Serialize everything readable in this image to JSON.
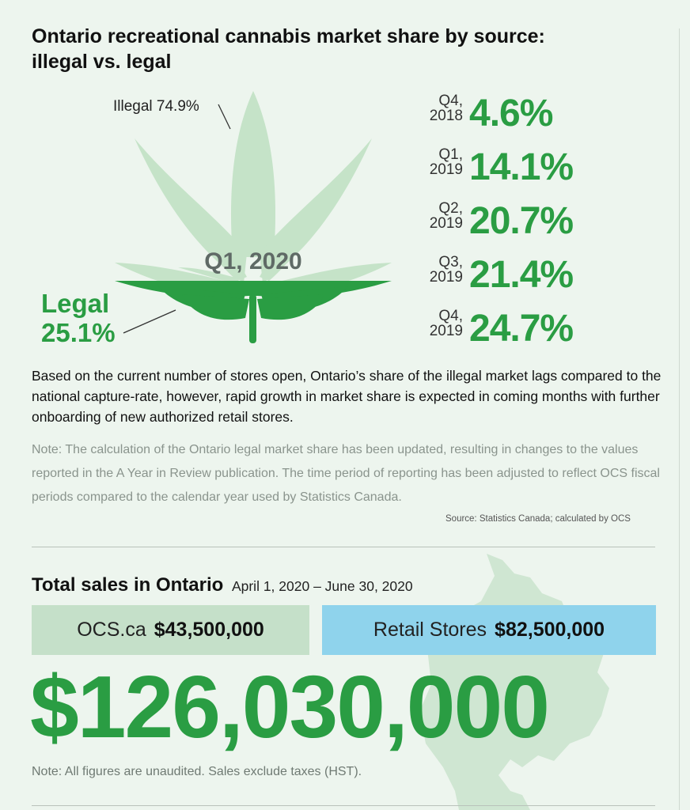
{
  "title": "Ontario recreational cannabis market share by source: illegal vs. legal",
  "leaf": {
    "illegal_label": "Illegal 74.9%",
    "period_label": "Q1, 2020",
    "legal_label_line1": "Legal",
    "legal_label_line2": "25.1%",
    "legal_share_fraction": 0.251,
    "colors": {
      "illegal": "#c5e3c8",
      "legal": "#2a9d43"
    }
  },
  "quarters": [
    {
      "period_line1": "Q4,",
      "period_line2": "2018",
      "value": "4.6%"
    },
    {
      "period_line1": "Q1,",
      "period_line2": "2019",
      "value": "14.1%"
    },
    {
      "period_line1": "Q2,",
      "period_line2": "2019",
      "value": "20.7%"
    },
    {
      "period_line1": "Q3,",
      "period_line2": "2019",
      "value": "21.4%"
    },
    {
      "period_line1": "Q4,",
      "period_line2": "2019",
      "value": "24.7%"
    }
  ],
  "paragraph": "Based on the current number of stores open, Ontario’s share of the illegal market lags compared to the national capture-rate, however, rapid growth in market share is expected in coming months with further onboarding of new authorized retail stores.",
  "note": "Note: The calculation of the Ontario legal market share has been updated, resulting in changes to the values reported in the A Year in Review publication. The time period of reporting has been adjusted to reflect OCS fiscal periods compared to the calendar year used by Statistics Canada.",
  "source": "Source: Statistics Canada; calculated by OCS",
  "sales": {
    "title": "Total sales in Ontario",
    "dates": "April 1, 2020 – June 30, 2020",
    "ocs_label": "OCS.ca",
    "ocs_value": "$43,500,000",
    "retail_label": "Retail Stores",
    "retail_value": "$82,500,000",
    "total": "$126,030,000",
    "footnote": "Note: All figures are unaudited. Sales exclude taxes (HST)."
  },
  "colors": {
    "background": "#edf5ee",
    "accent_green": "#2a9d43",
    "ocs_box": "#c5e0c9",
    "retail_box": "#8fd3ec"
  }
}
